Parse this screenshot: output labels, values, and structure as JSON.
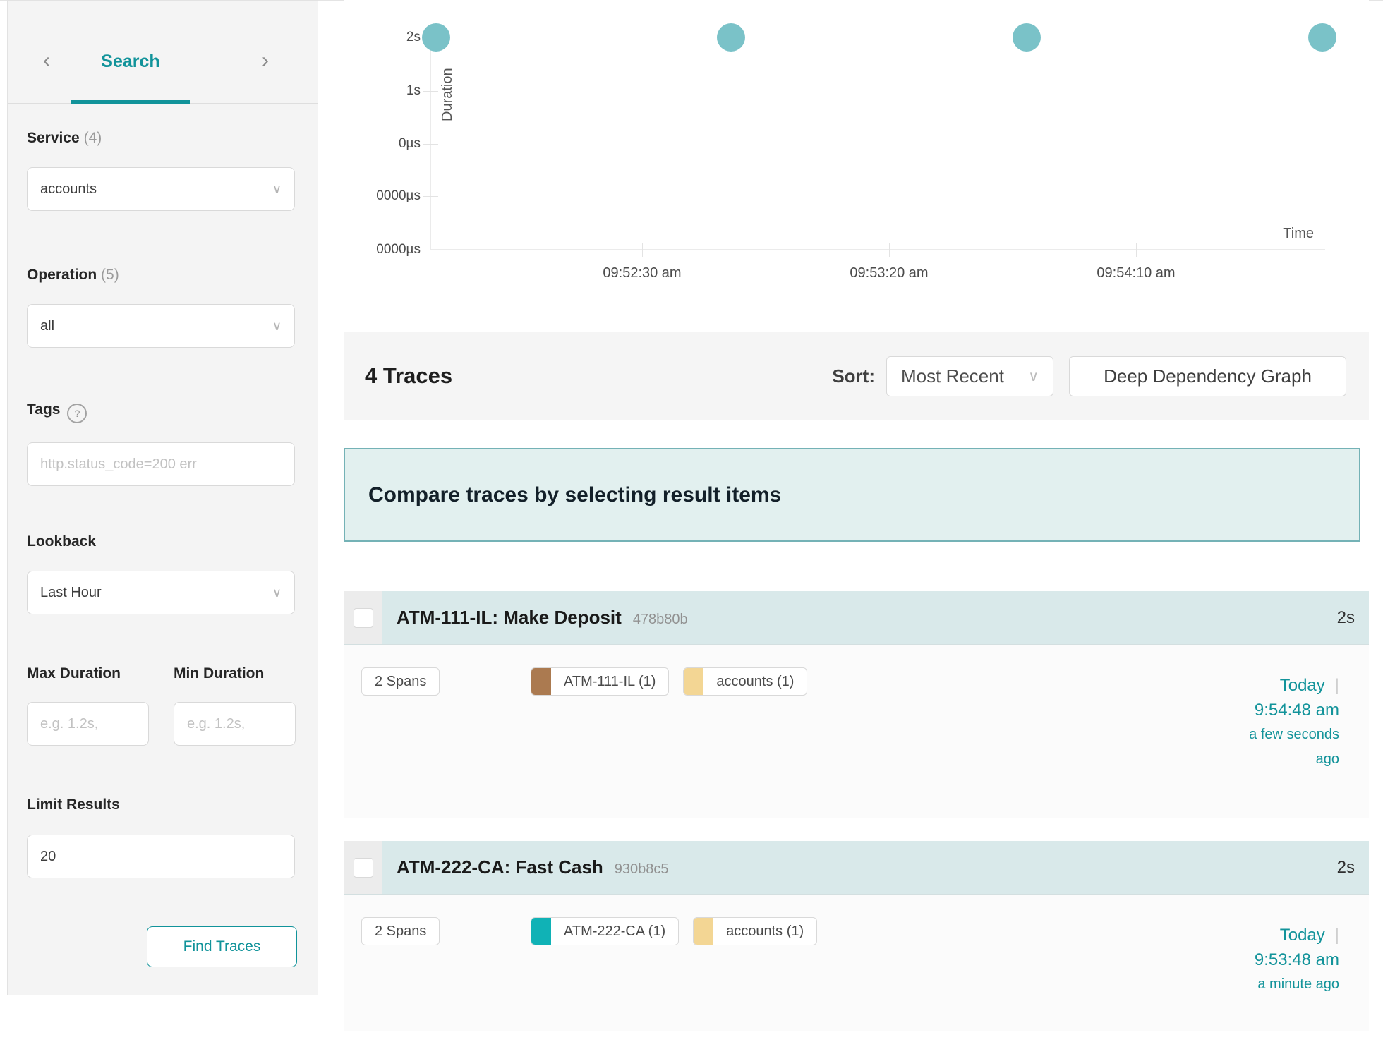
{
  "icons": {
    "prev": "‹",
    "next": "›",
    "chevron_down": "∨",
    "help": "?",
    "separator": "|"
  },
  "colors": {
    "accent": "#11939a",
    "link": "#12939a",
    "dot": "#7ac2c8",
    "trace_header_bg": "#d9e9ea",
    "banner_bg": "#e2f0ef",
    "banner_border": "#74b2b6"
  },
  "sidebar": {
    "tab": "Search",
    "service_label": "Service",
    "service_count": "(4)",
    "service_value": "accounts",
    "operation_label": "Operation",
    "operation_count": "(5)",
    "operation_value": "all",
    "tags_label": "Tags",
    "tags_placeholder": "http.status_code=200 err",
    "lookback_label": "Lookback",
    "lookback_value": "Last Hour",
    "max_duration_label": "Max Duration",
    "min_duration_label": "Min Duration",
    "duration_placeholder": "e.g. 1.2s,",
    "limit_label": "Limit Results",
    "limit_value": "20",
    "find_button": "Find Traces"
  },
  "chart_data": {
    "type": "scatter",
    "title": "",
    "xlabel": "Time",
    "ylabel": "Duration",
    "y_ticks": [
      "2s",
      "1s",
      "0µs",
      "0000µs",
      "0000µs"
    ],
    "x_ticks": [
      "09:52:30 am",
      "09:53:20 am",
      "09:54:10 am"
    ],
    "points": [
      {
        "x": "09:51:48 am",
        "y": "2s"
      },
      {
        "x": "09:52:48 am",
        "y": "2s"
      },
      {
        "x": "09:53:48 am",
        "y": "2s"
      },
      {
        "x": "09:54:48 am",
        "y": "2s"
      }
    ],
    "dot_color": "#7ac2c8",
    "grid": false,
    "legend": "none"
  },
  "results_header": {
    "count_text": "4 Traces",
    "sort_label": "Sort:",
    "sort_value": "Most Recent",
    "ddg_button": "Deep Dependency Graph"
  },
  "compare_banner": {
    "text": "Compare traces by selecting result items"
  },
  "traces": [
    {
      "title": "ATM-111-IL: Make Deposit",
      "trace_id": "478b80b",
      "duration": "2s",
      "spans": "2 Spans",
      "services": [
        {
          "label": "ATM-111-IL (1)",
          "color": "#ab7a50"
        },
        {
          "label": "accounts (1)",
          "color": "#f3d694"
        }
      ],
      "date": "Today",
      "time": "9:54:48 am",
      "relative": "a few seconds ago"
    },
    {
      "title": "ATM-222-CA: Fast Cash",
      "trace_id": "930b8c5",
      "duration": "2s",
      "spans": "2 Spans",
      "services": [
        {
          "label": "ATM-222-CA (1)",
          "color": "#10b2b6"
        },
        {
          "label": "accounts (1)",
          "color": "#f3d694"
        }
      ],
      "date": "Today",
      "time": "9:53:48 am",
      "relative": "a minute ago"
    }
  ]
}
